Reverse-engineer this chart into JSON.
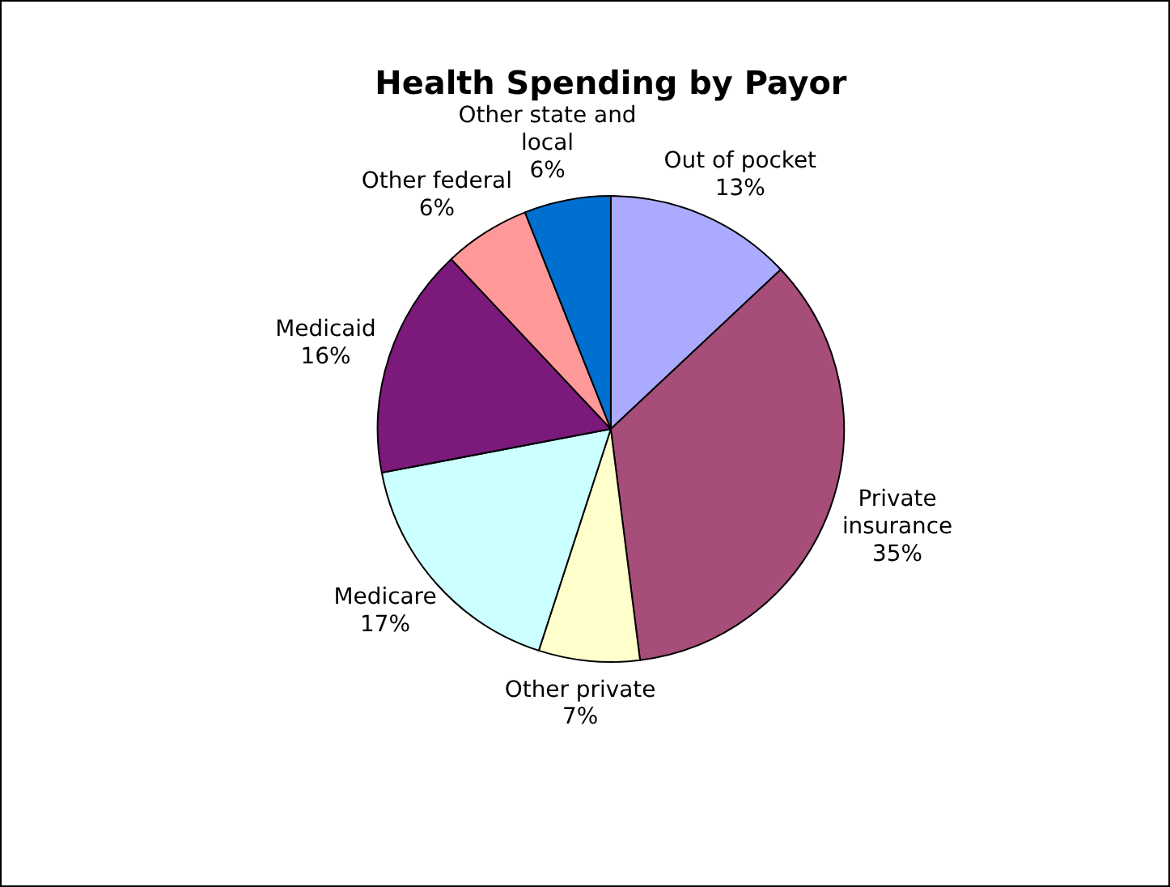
{
  "chart_data": {
    "type": "pie",
    "title": "Health Spending by Payor",
    "categories": [
      "Out of pocket",
      "Private insurance",
      "Other private",
      "Medicare",
      "Medicaid",
      "Other federal",
      "Other state and local"
    ],
    "values": [
      13,
      35,
      7,
      17,
      16,
      6,
      6
    ],
    "colors": [
      "#aaaaff",
      "#a64d79",
      "#ffffcc",
      "#ccffff",
      "#7b1a7b",
      "#ff9999",
      "#0070d0"
    ],
    "value_labels": [
      "13%",
      "35%",
      "7%",
      "17%",
      "16%",
      "6%",
      "6%"
    ],
    "legend": false
  }
}
